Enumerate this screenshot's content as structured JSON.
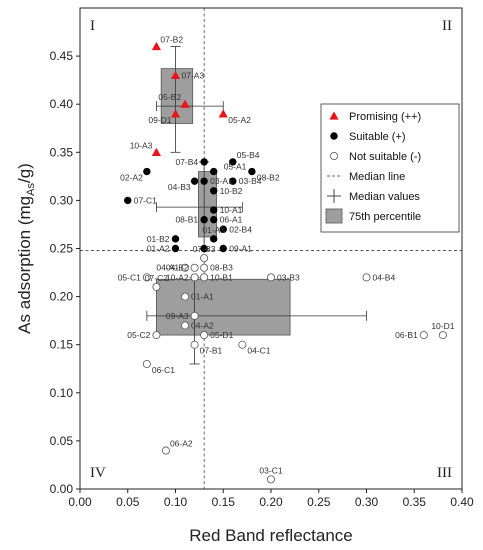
{
  "chart_data": {
    "type": "scatter",
    "xlabel": "Red Band reflectance",
    "ylabel_main": "As adsorption (mg",
    "ylabel_sub": "As",
    "ylabel_end": "/g)",
    "xlim": [
      0,
      0.4
    ],
    "ylim": [
      0,
      0.5
    ],
    "xticks": [
      "0.00",
      "0.05",
      "0.10",
      "0.15",
      "0.20",
      "0.25",
      "0.30",
      "0.35",
      "0.40"
    ],
    "yticks": [
      "0.00",
      "0.05",
      "0.10",
      "0.15",
      "0.20",
      "0.25",
      "0.30",
      "0.35",
      "0.40",
      "0.45"
    ],
    "median_x": 0.13,
    "median_y": 0.248,
    "quadrants": [
      "I",
      "II",
      "III",
      "IV"
    ],
    "colors": {
      "promising": "#e8151b",
      "suitable": "#000000",
      "box": "#9e9e9e"
    },
    "legend": {
      "placement": "right",
      "items": [
        {
          "key": "promising",
          "label": "Promising (++)"
        },
        {
          "key": "suitable",
          "label": "Suitable (+)"
        },
        {
          "key": "not_suitable",
          "label": "Not suitable (-)"
        },
        {
          "key": "median_line",
          "label": "Median line"
        },
        {
          "key": "median_values",
          "label": "Median values"
        },
        {
          "key": "percentile",
          "label": "75th percentile"
        }
      ]
    },
    "boxes": [
      {
        "group": "promising",
        "x": [
          0.085,
          0.118
        ],
        "y": [
          0.38,
          0.437
        ],
        "median": [
          0.1,
          0.398
        ],
        "xwhisker": [
          0.08,
          0.15
        ],
        "ywhisker": [
          0.35,
          0.46
        ]
      },
      {
        "group": "suitable",
        "x": [
          0.124,
          0.143
        ],
        "y": [
          0.262,
          0.33
        ],
        "median": [
          0.13,
          0.293
        ],
        "xwhisker": [
          0.08,
          0.17
        ],
        "ywhisker": [
          0.25,
          0.34
        ]
      },
      {
        "group": "not_suitable",
        "x": [
          0.08,
          0.22
        ],
        "y": [
          0.16,
          0.218
        ],
        "median": [
          0.12,
          0.18
        ],
        "xwhisker": [
          0.07,
          0.3
        ],
        "ywhisker": [
          0.13,
          0.22
        ]
      }
    ],
    "series": [
      {
        "name": "Promising (++)",
        "key": "promising",
        "points": [
          {
            "id": "07-B2",
            "x": 0.08,
            "y": 0.46,
            "pos": "tr"
          },
          {
            "id": "07-A3",
            "x": 0.1,
            "y": 0.43,
            "pos": "r"
          },
          {
            "id": "05-B2",
            "x": 0.11,
            "y": 0.4,
            "pos": "tl"
          },
          {
            "id": "09-D1",
            "x": 0.1,
            "y": 0.39,
            "pos": "bl"
          },
          {
            "id": "05-A2",
            "x": 0.15,
            "y": 0.39,
            "pos": "br"
          },
          {
            "id": "10-A3",
            "x": 0.08,
            "y": 0.35,
            "pos": "tl"
          }
        ]
      },
      {
        "name": "Suitable (+)",
        "key": "suitable",
        "points": [
          {
            "id": "05-B4",
            "x": 0.16,
            "y": 0.34,
            "pos": "tr"
          },
          {
            "id": "07-B4",
            "x": 0.13,
            "y": 0.34,
            "pos": "l"
          },
          {
            "id": "05-A1",
            "x": 0.14,
            "y": 0.33,
            "pos": "tr2"
          },
          {
            "id": "02-A2",
            "x": 0.07,
            "y": 0.33,
            "pos": "bl"
          },
          {
            "id": "08-B2",
            "x": 0.18,
            "y": 0.33,
            "pos": "br"
          },
          {
            "id": "03-A1",
            "x": 0.13,
            "y": 0.32,
            "pos": "r"
          },
          {
            "id": "03-B4",
            "x": 0.16,
            "y": 0.32,
            "pos": "r"
          },
          {
            "id": "04-B3",
            "x": 0.12,
            "y": 0.32,
            "pos": "bl"
          },
          {
            "id": "07-C1",
            "x": 0.05,
            "y": 0.3,
            "pos": "r"
          },
          {
            "id": "10-B2",
            "x": 0.14,
            "y": 0.31,
            "pos": "r"
          },
          {
            "id": "10-A1",
            "x": 0.14,
            "y": 0.29,
            "pos": "r"
          },
          {
            "id": "08-B1",
            "x": 0.13,
            "y": 0.28,
            "pos": "l"
          },
          {
            "id": "06-A1",
            "x": 0.14,
            "y": 0.28,
            "pos": "r"
          },
          {
            "id": "01-B2",
            "x": 0.1,
            "y": 0.26,
            "pos": "l"
          },
          {
            "id": "01-A3",
            "x": 0.14,
            "y": 0.26,
            "pos": "t"
          },
          {
            "id": "02-B4",
            "x": 0.15,
            "y": 0.27,
            "pos": "r"
          },
          {
            "id": "01-A2",
            "x": 0.1,
            "y": 0.25,
            "pos": "l"
          },
          {
            "id": "09-A1",
            "x": 0.15,
            "y": 0.25,
            "pos": "r"
          },
          {
            "id": "m1",
            "x": 0.13,
            "y": 0.25,
            "pos": "none"
          }
        ]
      },
      {
        "name": "Not suitable (-)",
        "key": "not_suitable",
        "points": [
          {
            "id": "04-B2",
            "x": 0.12,
            "y": 0.23,
            "pos": "l"
          },
          {
            "id": "07-B3",
            "x": 0.13,
            "y": 0.24,
            "pos": "t"
          },
          {
            "id": "04-A1",
            "x": 0.11,
            "y": 0.23,
            "pos": "l"
          },
          {
            "id": "08-B3",
            "x": 0.13,
            "y": 0.23,
            "pos": "r"
          },
          {
            "id": "05-C1",
            "x": 0.07,
            "y": 0.22,
            "pos": "l"
          },
          {
            "id": "10-A2",
            "x": 0.12,
            "y": 0.22,
            "pos": "l"
          },
          {
            "id": "10-B1",
            "x": 0.13,
            "y": 0.22,
            "pos": "r"
          },
          {
            "id": "03-B3",
            "x": 0.2,
            "y": 0.22,
            "pos": "r"
          },
          {
            "id": "04-B4",
            "x": 0.3,
            "y": 0.22,
            "pos": "r"
          },
          {
            "id": "07-C2",
            "x": 0.08,
            "y": 0.21,
            "pos": "t"
          },
          {
            "id": "01-A1",
            "x": 0.11,
            "y": 0.2,
            "pos": "r"
          },
          {
            "id": "09-A3",
            "x": 0.12,
            "y": 0.18,
            "pos": "l"
          },
          {
            "id": "04-A2",
            "x": 0.11,
            "y": 0.17,
            "pos": "r"
          },
          {
            "id": "05-C2",
            "x": 0.08,
            "y": 0.16,
            "pos": "l"
          },
          {
            "id": "05-D1",
            "x": 0.13,
            "y": 0.16,
            "pos": "r"
          },
          {
            "id": "07-B1",
            "x": 0.12,
            "y": 0.15,
            "pos": "br"
          },
          {
            "id": "04-C1",
            "x": 0.17,
            "y": 0.15,
            "pos": "br"
          },
          {
            "id": "06-C1",
            "x": 0.07,
            "y": 0.13,
            "pos": "br"
          },
          {
            "id": "06-B1",
            "x": 0.36,
            "y": 0.16,
            "pos": "l"
          },
          {
            "id": "10-D1",
            "x": 0.38,
            "y": 0.16,
            "pos": "t"
          },
          {
            "id": "06-A2",
            "x": 0.09,
            "y": 0.04,
            "pos": "tr"
          },
          {
            "id": "03-C1",
            "x": 0.2,
            "y": 0.01,
            "pos": "t"
          }
        ]
      }
    ]
  }
}
